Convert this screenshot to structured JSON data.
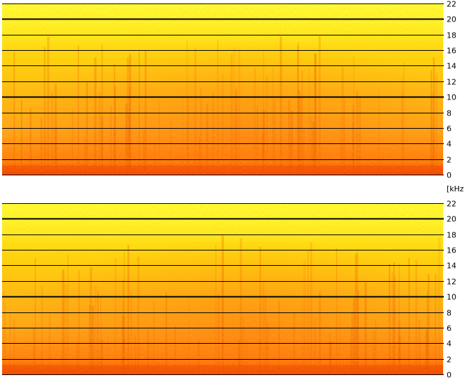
{
  "chart_data": [
    {
      "type": "heatmap",
      "title": "",
      "xlabel": "",
      "ylabel": "",
      "y_unit": "[kHz]",
      "ylim": [
        0,
        22
      ],
      "y_ticks": [
        0,
        2,
        4,
        6,
        8,
        10,
        12,
        14,
        16,
        18,
        20,
        22
      ],
      "y_tick_labels": [
        "0",
        "2",
        "4",
        "6",
        "8",
        "10",
        "12",
        "14",
        "16",
        "18",
        "20",
        "22"
      ],
      "emphasized_gridlines_khz": [
        10,
        20
      ],
      "grid": true,
      "colormap": [
        "#ffff30",
        "#ffd800",
        "#ffa000",
        "#ff6010",
        "#ef2a00"
      ]
    },
    {
      "type": "heatmap",
      "title": "",
      "xlabel": "",
      "ylabel": "",
      "ylim": [
        0,
        22
      ],
      "y_ticks": [
        0,
        2,
        4,
        6,
        8,
        10,
        12,
        14,
        16,
        18,
        20,
        22
      ],
      "y_tick_labels": [
        "0",
        "2",
        "4",
        "6",
        "8",
        "10",
        "12",
        "14",
        "16",
        "18",
        "20",
        "22"
      ],
      "emphasized_gridlines_khz": [
        10,
        20
      ],
      "grid": true,
      "colormap": [
        "#ffff30",
        "#ffd800",
        "#ffa000",
        "#ff6010",
        "#ef2a00"
      ]
    }
  ]
}
